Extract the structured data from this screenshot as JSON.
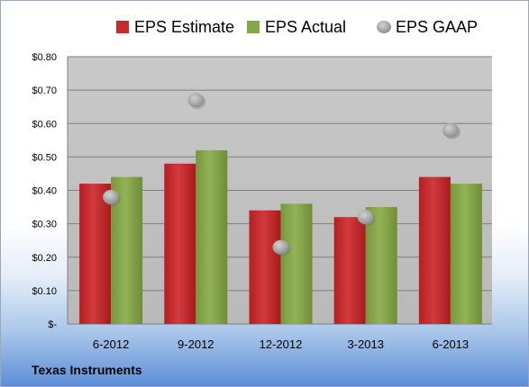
{
  "footer": {
    "company": "Texas Instruments"
  },
  "chart_data": {
    "type": "bar",
    "categories": [
      "6-2012",
      "9-2012",
      "12-2012",
      "3-2013",
      "6-2013"
    ],
    "series": [
      {
        "name": "EPS Estimate",
        "kind": "bar",
        "color": "#c8292b",
        "values": [
          0.42,
          0.48,
          0.34,
          0.32,
          0.44
        ]
      },
      {
        "name": "EPS Actual",
        "kind": "bar",
        "color": "#86a64a",
        "values": [
          0.44,
          0.52,
          0.36,
          0.35,
          0.42
        ]
      },
      {
        "name": "EPS GAAP",
        "kind": "marker",
        "color": "#a6a6a6",
        "values": [
          0.38,
          0.67,
          0.23,
          0.32,
          0.58
        ]
      }
    ],
    "ylim": [
      0,
      0.8
    ],
    "yticks": [
      0,
      0.1,
      0.2,
      0.3,
      0.4,
      0.5,
      0.6,
      0.7,
      0.8
    ],
    "ytick_labels": [
      "$-",
      "$0.10",
      "$0.20",
      "$0.30",
      "$0.40",
      "$0.50",
      "$0.60",
      "$0.70",
      "$0.80"
    ],
    "grid": true,
    "legend_position": "top",
    "plot_background": "#c0c0c0"
  }
}
